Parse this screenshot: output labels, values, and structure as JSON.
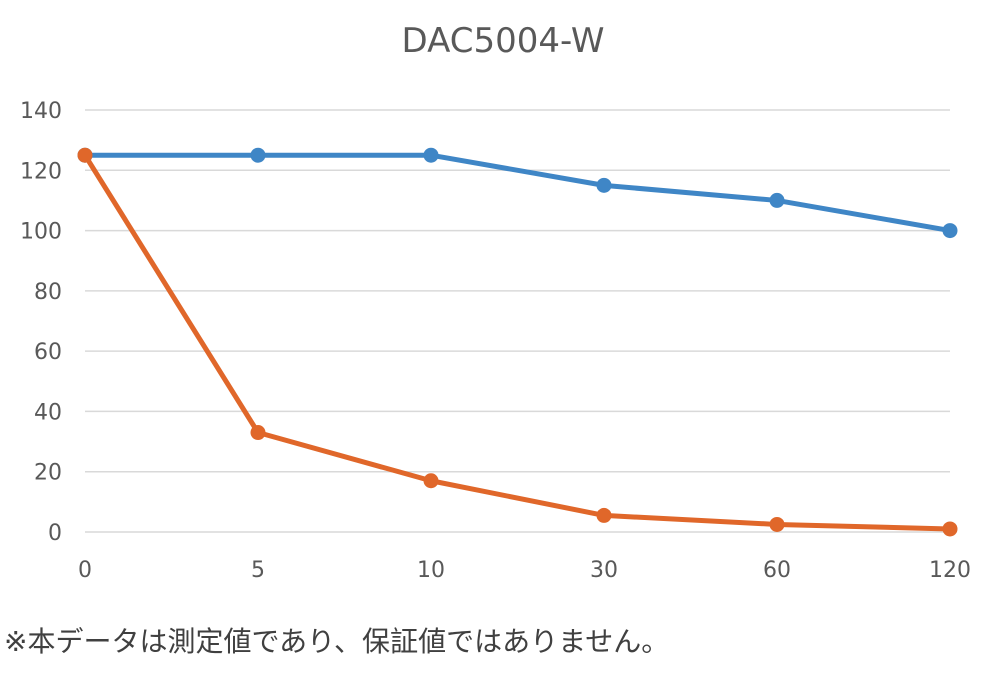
{
  "chart_data": {
    "type": "line",
    "title": "DAC5004-W",
    "categories": [
      "0",
      "5",
      "10",
      "30",
      "60",
      "120"
    ],
    "series": [
      {
        "color": "#3f86c6",
        "values": [
          125,
          125,
          125,
          115,
          110,
          100
        ]
      },
      {
        "color": "#e0672a",
        "values": [
          125,
          33,
          17,
          5.5,
          2.5,
          1
        ]
      }
    ],
    "ylim": [
      0,
      140
    ],
    "yticks": [
      0,
      20,
      40,
      60,
      80,
      100,
      120,
      140
    ],
    "grid": true
  },
  "footnote": "※本データは測定値であり、保証値ではありません。"
}
